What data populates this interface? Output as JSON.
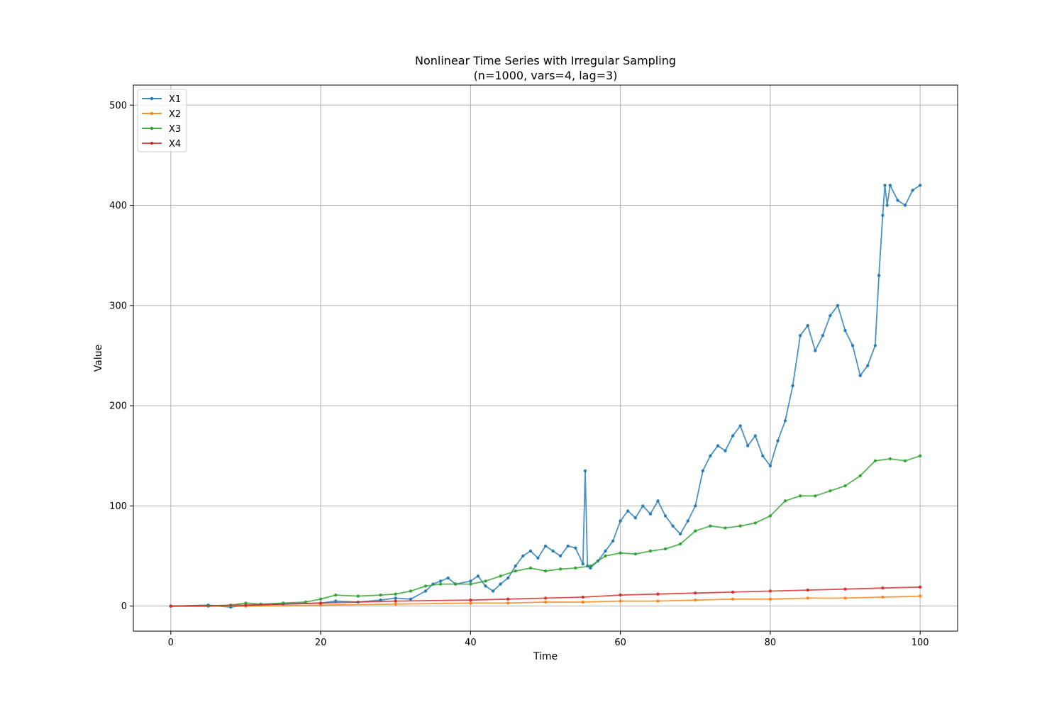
{
  "chart_data": {
    "type": "line",
    "title": "Nonlinear Time Series with Irregular Sampling",
    "subtitle": "(n=1000, vars=4, lag=3)",
    "xlabel": "Time",
    "ylabel": "Value",
    "xlim": [
      -5,
      105
    ],
    "ylim": [
      -25,
      520
    ],
    "xticks": [
      0,
      20,
      40,
      60,
      80,
      100
    ],
    "yticks": [
      0,
      100,
      200,
      300,
      400,
      500
    ],
    "grid": true,
    "legend_position": "top-left",
    "markers": true,
    "series": [
      {
        "name": "X1",
        "color": "#1f77b4",
        "points": [
          [
            0,
            0
          ],
          [
            5,
            1
          ],
          [
            8,
            -1
          ],
          [
            10,
            1
          ],
          [
            15,
            2
          ],
          [
            20,
            3
          ],
          [
            22,
            5
          ],
          [
            25,
            4
          ],
          [
            28,
            6
          ],
          [
            30,
            8
          ],
          [
            32,
            7
          ],
          [
            34,
            15
          ],
          [
            35,
            22
          ],
          [
            36,
            25
          ],
          [
            37,
            28
          ],
          [
            38,
            22
          ],
          [
            40,
            25
          ],
          [
            41,
            30
          ],
          [
            42,
            20
          ],
          [
            43,
            15
          ],
          [
            44,
            22
          ],
          [
            45,
            28
          ],
          [
            46,
            40
          ],
          [
            47,
            50
          ],
          [
            48,
            55
          ],
          [
            49,
            48
          ],
          [
            50,
            60
          ],
          [
            51,
            55
          ],
          [
            52,
            50
          ],
          [
            53,
            60
          ],
          [
            54,
            58
          ],
          [
            55,
            42
          ],
          [
            55.3,
            135
          ],
          [
            55.6,
            40
          ],
          [
            56,
            38
          ],
          [
            57,
            45
          ],
          [
            58,
            55
          ],
          [
            59,
            65
          ],
          [
            60,
            85
          ],
          [
            61,
            95
          ],
          [
            62,
            88
          ],
          [
            63,
            100
          ],
          [
            64,
            92
          ],
          [
            65,
            105
          ],
          [
            66,
            90
          ],
          [
            67,
            80
          ],
          [
            68,
            72
          ],
          [
            69,
            85
          ],
          [
            70,
            100
          ],
          [
            71,
            135
          ],
          [
            72,
            150
          ],
          [
            73,
            160
          ],
          [
            74,
            155
          ],
          [
            75,
            170
          ],
          [
            76,
            180
          ],
          [
            77,
            160
          ],
          [
            78,
            170
          ],
          [
            79,
            150
          ],
          [
            80,
            140
          ],
          [
            81,
            165
          ],
          [
            82,
            185
          ],
          [
            83,
            220
          ],
          [
            84,
            270
          ],
          [
            85,
            280
          ],
          [
            86,
            255
          ],
          [
            87,
            270
          ],
          [
            88,
            290
          ],
          [
            89,
            300
          ],
          [
            90,
            275
          ],
          [
            91,
            260
          ],
          [
            92,
            230
          ],
          [
            93,
            240
          ],
          [
            94,
            260
          ],
          [
            94.5,
            330
          ],
          [
            95,
            390
          ],
          [
            95.3,
            420
          ],
          [
            95.6,
            400
          ],
          [
            96,
            420
          ],
          [
            97,
            405
          ],
          [
            98,
            400
          ],
          [
            99,
            415
          ],
          [
            100,
            420
          ]
        ]
      },
      {
        "name": "X2",
        "color": "#ff7f0e",
        "points": [
          [
            0,
            0
          ],
          [
            10,
            0
          ],
          [
            20,
            1
          ],
          [
            30,
            2
          ],
          [
            40,
            3
          ],
          [
            45,
            3
          ],
          [
            50,
            4
          ],
          [
            55,
            4
          ],
          [
            60,
            5
          ],
          [
            65,
            5
          ],
          [
            70,
            6
          ],
          [
            75,
            7
          ],
          [
            80,
            7
          ],
          [
            85,
            8
          ],
          [
            90,
            8
          ],
          [
            95,
            9
          ],
          [
            100,
            10
          ]
        ]
      },
      {
        "name": "X3",
        "color": "#2ca02c",
        "points": [
          [
            0,
            0
          ],
          [
            5,
            0
          ],
          [
            8,
            1
          ],
          [
            10,
            3
          ],
          [
            12,
            2
          ],
          [
            15,
            3
          ],
          [
            18,
            4
          ],
          [
            20,
            7
          ],
          [
            22,
            11
          ],
          [
            25,
            10
          ],
          [
            28,
            11
          ],
          [
            30,
            12
          ],
          [
            32,
            15
          ],
          [
            34,
            20
          ],
          [
            36,
            22
          ],
          [
            38,
            22
          ],
          [
            40,
            22
          ],
          [
            42,
            25
          ],
          [
            44,
            30
          ],
          [
            46,
            35
          ],
          [
            48,
            38
          ],
          [
            50,
            35
          ],
          [
            52,
            37
          ],
          [
            54,
            38
          ],
          [
            56,
            40
          ],
          [
            58,
            50
          ],
          [
            60,
            53
          ],
          [
            62,
            52
          ],
          [
            64,
            55
          ],
          [
            66,
            57
          ],
          [
            68,
            62
          ],
          [
            70,
            75
          ],
          [
            72,
            80
          ],
          [
            74,
            78
          ],
          [
            76,
            80
          ],
          [
            78,
            83
          ],
          [
            80,
            90
          ],
          [
            82,
            105
          ],
          [
            84,
            110
          ],
          [
            86,
            110
          ],
          [
            88,
            115
          ],
          [
            90,
            120
          ],
          [
            92,
            130
          ],
          [
            94,
            145
          ],
          [
            96,
            147
          ],
          [
            98,
            145
          ],
          [
            100,
            150
          ]
        ]
      },
      {
        "name": "X4",
        "color": "#d62728",
        "points": [
          [
            0,
            0
          ],
          [
            10,
            1
          ],
          [
            20,
            3
          ],
          [
            30,
            5
          ],
          [
            40,
            6
          ],
          [
            45,
            7
          ],
          [
            50,
            8
          ],
          [
            55,
            9
          ],
          [
            60,
            11
          ],
          [
            65,
            12
          ],
          [
            70,
            13
          ],
          [
            75,
            14
          ],
          [
            80,
            15
          ],
          [
            85,
            16
          ],
          [
            90,
            17
          ],
          [
            95,
            18
          ],
          [
            100,
            19
          ]
        ]
      }
    ]
  }
}
